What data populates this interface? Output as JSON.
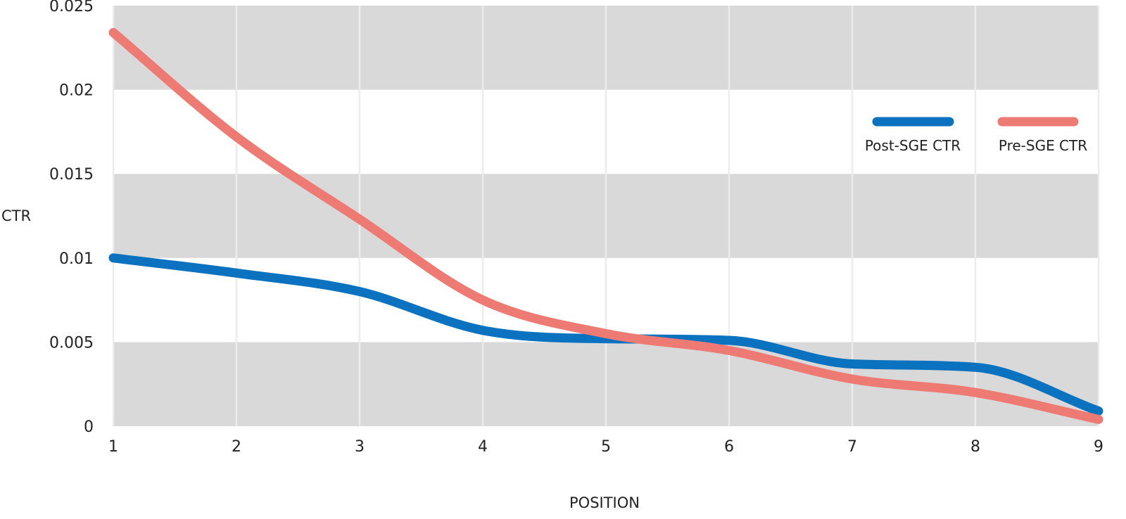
{
  "chart_data": {
    "type": "line",
    "title": "",
    "xlabel": "POSITION",
    "ylabel": "CTR",
    "x": [
      1,
      2,
      3,
      4,
      5,
      6,
      7,
      8,
      9
    ],
    "xlim": [
      1,
      9
    ],
    "ylim": [
      0,
      0.025
    ],
    "y_ticks": [
      "0",
      "0.005",
      "0.01",
      "0.015",
      "0.02",
      "0.025"
    ],
    "x_ticks": [
      "1",
      "2",
      "3",
      "4",
      "5",
      "6",
      "7",
      "8",
      "9"
    ],
    "grid": true,
    "legend_position": "top-right",
    "series": [
      {
        "name": "Post-SGE CTR",
        "color": "#0a72bf",
        "values": [
          0.01,
          0.0091,
          0.008,
          0.0057,
          0.0052,
          0.0051,
          0.0037,
          0.0035,
          0.0009
        ]
      },
      {
        "name": "Pre-SGE CTR",
        "color": "#ee7b73",
        "values": [
          0.0234,
          0.0172,
          0.0123,
          0.0075,
          0.0055,
          0.0045,
          0.0028,
          0.002,
          0.0004
        ]
      }
    ],
    "colors": {
      "band_dark": "#d9d9d9",
      "band_light": "#ffffff",
      "gridline": "#ececec"
    }
  }
}
